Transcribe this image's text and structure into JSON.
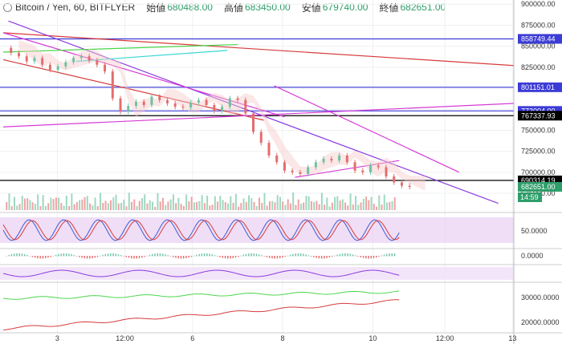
{
  "header": {
    "symbol": "Bitcoin / Yen, 60, BITFLYER",
    "open_label": "始値",
    "open": "680488.00",
    "high_label": "高値",
    "high": "683450.00",
    "low_label": "安値",
    "low": "679740.00",
    "close_label": "終値",
    "close": "682651.00"
  },
  "colors": {
    "up": "#6fc2a0",
    "down": "#e56d6d",
    "blue_line": "#3b3bd6",
    "red_line": "#d63b3b",
    "magenta": "#d63bd6",
    "purple": "#8a3be0",
    "green": "#4bd64b",
    "cyan": "#3bd6d6",
    "black_line": "#000000",
    "last_price": "#2e9e6a"
  },
  "chart_data": {
    "type": "line",
    "title": "Bitcoin / Yen, 60, BITFLYER",
    "yticks_main": [
      "900000.00",
      "875000.00",
      "850000.00",
      "825000.00",
      "800000.00",
      "775000.00",
      "750000.00",
      "725000.00",
      "700000.00",
      "675000.00"
    ],
    "price_labels": [
      {
        "value": "858749.44",
        "color": "#3b3bd6"
      },
      {
        "value": "801151.01",
        "color": "#3b3bd6"
      },
      {
        "value": "773004.00",
        "color": "#3b3bd6"
      },
      {
        "value": "767337.93",
        "color": "#000000"
      },
      {
        "value": "690314.19",
        "color": "#000000"
      },
      {
        "value": "682651.00",
        "color": "#2e9e6a"
      }
    ],
    "countdown": "14:59",
    "xticks": [
      "3",
      "12:00",
      "6",
      "8",
      "10",
      "12:00",
      "13"
    ],
    "stoch_ticks": [
      "50.0000"
    ],
    "macd_ticks": [
      "0.0000"
    ],
    "vol_ticks": [
      "30000.0000",
      "20000.0000"
    ],
    "ylim": [
      655000,
      905000
    ],
    "price": [
      {
        "t": 0,
        "p": 848000
      },
      {
        "t": 3,
        "p": 842000
      },
      {
        "t": 6,
        "p": 838000
      },
      {
        "t": 9,
        "p": 832000
      },
      {
        "t": 12,
        "p": 836000
      },
      {
        "t": 15,
        "p": 828000
      },
      {
        "t": 18,
        "p": 822000
      },
      {
        "t": 21,
        "p": 826000
      },
      {
        "t": 24,
        "p": 831000
      },
      {
        "t": 27,
        "p": 836000
      },
      {
        "t": 30,
        "p": 838000
      },
      {
        "t": 33,
        "p": 833000
      },
      {
        "t": 36,
        "p": 828000
      },
      {
        "t": 39,
        "p": 820000
      },
      {
        "t": 42,
        "p": 788000
      },
      {
        "t": 45,
        "p": 772000
      },
      {
        "t": 48,
        "p": 779000
      },
      {
        "t": 51,
        "p": 784000
      },
      {
        "t": 54,
        "p": 780000
      },
      {
        "t": 57,
        "p": 790000
      },
      {
        "t": 60,
        "p": 786000
      },
      {
        "t": 63,
        "p": 782000
      },
      {
        "t": 66,
        "p": 778000
      },
      {
        "t": 69,
        "p": 777000
      },
      {
        "t": 72,
        "p": 783000
      },
      {
        "t": 75,
        "p": 786000
      },
      {
        "t": 78,
        "p": 780000
      },
      {
        "t": 81,
        "p": 773000
      },
      {
        "t": 84,
        "p": 778000
      },
      {
        "t": 87,
        "p": 788000
      },
      {
        "t": 90,
        "p": 786000
      },
      {
        "t": 93,
        "p": 770000
      },
      {
        "t": 96,
        "p": 748000
      },
      {
        "t": 99,
        "p": 735000
      },
      {
        "t": 102,
        "p": 720000
      },
      {
        "t": 105,
        "p": 712000
      },
      {
        "t": 108,
        "p": 702000
      },
      {
        "t": 111,
        "p": 700000
      },
      {
        "t": 114,
        "p": 698000
      },
      {
        "t": 117,
        "p": 706000
      },
      {
        "t": 120,
        "p": 712000
      },
      {
        "t": 123,
        "p": 716000
      },
      {
        "t": 126,
        "p": 714000
      },
      {
        "t": 129,
        "p": 720000
      },
      {
        "t": 132,
        "p": 712000
      },
      {
        "t": 135,
        "p": 702000
      },
      {
        "t": 138,
        "p": 700000
      },
      {
        "t": 141,
        "p": 708000
      },
      {
        "t": 144,
        "p": 706000
      },
      {
        "t": 147,
        "p": 695000
      },
      {
        "t": 150,
        "p": 688000
      },
      {
        "t": 153,
        "p": 684000
      },
      {
        "t": 156,
        "p": 682651
      }
    ],
    "lines": [
      {
        "name": "blue_858749",
        "kind": "h",
        "p": 858749.44,
        "color": "#3b3bd6"
      },
      {
        "name": "blue_801151",
        "kind": "h",
        "p": 801151.01,
        "color": "#3b3bd6"
      },
      {
        "name": "blue_773004",
        "kind": "h",
        "p": 773004,
        "color": "#3b3bd6"
      },
      {
        "name": "black_767337",
        "kind": "h",
        "p": 767337.93,
        "color": "#000000"
      },
      {
        "name": "black_690314",
        "kind": "h",
        "p": 690314.19,
        "color": "#000000"
      },
      {
        "name": "red_trend",
        "kind": "seg",
        "t1": 0,
        "p1": 866000,
        "t2": 196,
        "p2": 827000,
        "color": "#d63b3b"
      },
      {
        "name": "red_channel",
        "kind": "seg",
        "t1": 0,
        "p1": 834000,
        "t2": 100,
        "p2": 762000,
        "color": "#d63b3b"
      },
      {
        "name": "purple_down",
        "kind": "seg",
        "t1": 2,
        "p1": 880000,
        "t2": 190,
        "p2": 663000,
        "color": "#8a3be0"
      },
      {
        "name": "magenta_down",
        "kind": "seg",
        "t1": 0,
        "p1": 866000,
        "t2": 108,
        "p2": 766000,
        "color": "#d63bd6"
      },
      {
        "name": "magenta_up",
        "kind": "seg",
        "t1": 0,
        "p1": 754000,
        "t2": 196,
        "p2": 782000,
        "color": "#d63bd6"
      },
      {
        "name": "magenta_short",
        "kind": "seg",
        "t1": 112,
        "p1": 694000,
        "t2": 152,
        "p2": 714000,
        "color": "#d63bd6"
      },
      {
        "name": "magenta_down2",
        "kind": "seg",
        "t1": 104,
        "p1": 803000,
        "t2": 175,
        "p2": 700000,
        "color": "#d63bd6"
      },
      {
        "name": "green_line",
        "kind": "seg",
        "t1": 0,
        "p1": 843000,
        "t2": 90,
        "p2": 852000,
        "color": "#4bd64b"
      },
      {
        "name": "cyan_line",
        "kind": "seg",
        "t1": 28,
        "p1": 832000,
        "t2": 86,
        "p2": 845000,
        "color": "#3bd6d6"
      }
    ]
  }
}
